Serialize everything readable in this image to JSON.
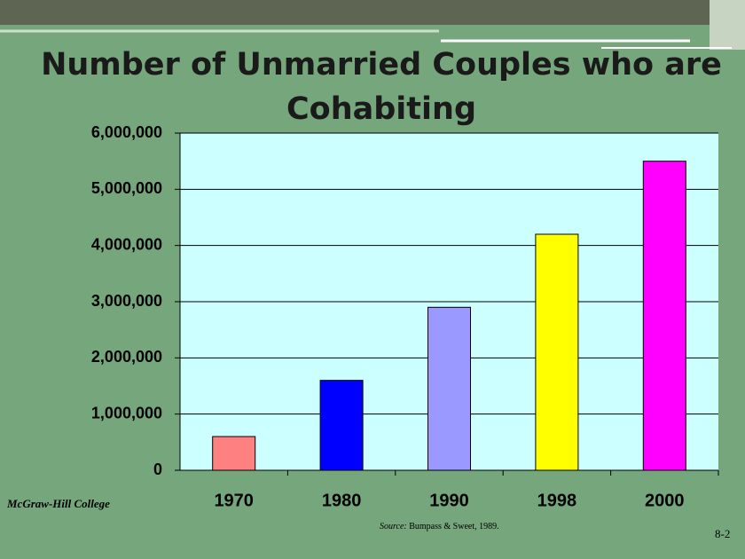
{
  "chart_data": {
    "type": "bar",
    "title": "Number of Unmarried Couples who are Cohabiting",
    "categories": [
      "1970",
      "1980",
      "1990",
      "1998",
      "2000"
    ],
    "values": [
      600000,
      1600000,
      2900000,
      4200000,
      5500000
    ],
    "colors": [
      "#ff8080",
      "#0000ff",
      "#9999ff",
      "#ffff00",
      "#ff00ff"
    ],
    "ylim": [
      0,
      6000000
    ],
    "yticks": [
      0,
      {
        "value": 1000000,
        "label": "1,000,000"
      },
      {
        "value": 2000000,
        "label": "2,000,000"
      },
      {
        "value": 3000000,
        "label": "3,000,000"
      },
      {
        "value": 4000000,
        "label": "4,000,000"
      },
      {
        "value": 5000000,
        "label": "5,000,000"
      },
      {
        "value": 6000000,
        "label": "6,000,000"
      }
    ],
    "grid": true
  },
  "publisher": "McGraw-Hill College",
  "source_label": "Source:",
  "source_text": "Bumpass & Sweet, 1989.",
  "slide_number": "8-2"
}
